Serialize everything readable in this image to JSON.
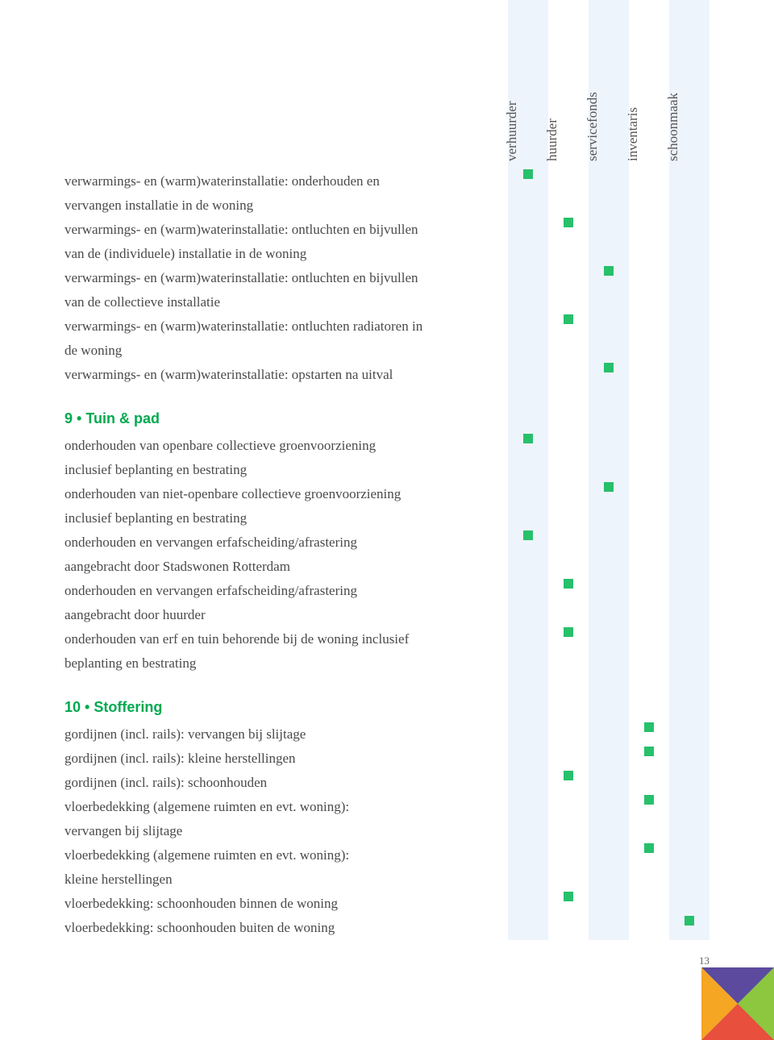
{
  "columns": [
    {
      "key": "verhuurder",
      "label": "verhuurder",
      "shade": "light"
    },
    {
      "key": "huurder",
      "label": "huurder",
      "shade": "white"
    },
    {
      "key": "servicefonds",
      "label": "servicefonds",
      "shade": "light"
    },
    {
      "key": "inventaris",
      "label": "inventaris",
      "shade": "white"
    },
    {
      "key": "schoonmaak",
      "label": "schoonmaak",
      "shade": "light"
    }
  ],
  "marker_color": "#27c06b",
  "section_color": "#00a94f",
  "stripe_light": "#eef4fc",
  "text_color": "#4a4a4a",
  "page_number": "13",
  "corner_colors": {
    "teal": "#2ab7a9",
    "green": "#8dc63f",
    "orange": "#f5a623",
    "red": "#e94f3d",
    "purple": "#5b4a9e"
  },
  "sections": [
    {
      "title": null,
      "rows": [
        {
          "lines": [
            "verwarmings- en (warm)waterinstallatie: onderhouden en",
            "vervangen installatie in de woning"
          ],
          "mark": "verhuurder"
        },
        {
          "lines": [
            "verwarmings- en (warm)waterinstallatie: ontluchten en bijvullen",
            "van de (individuele) installatie in de woning"
          ],
          "mark": "huurder"
        },
        {
          "lines": [
            "verwarmings- en (warm)waterinstallatie: ontluchten en bijvullen",
            "van de collectieve installatie"
          ],
          "mark": "servicefonds"
        },
        {
          "lines": [
            "verwarmings- en (warm)waterinstallatie: ontluchten radiatoren in",
            "de woning"
          ],
          "mark": "huurder"
        },
        {
          "lines": [
            "verwarmings- en (warm)waterinstallatie: opstarten na uitval"
          ],
          "mark": "servicefonds"
        }
      ]
    },
    {
      "title_num": "9",
      "title_text": "Tuin & pad",
      "rows": [
        {
          "lines": [
            "onderhouden van openbare collectieve groenvoorziening",
            "inclusief beplanting en bestrating"
          ],
          "mark": "verhuurder"
        },
        {
          "lines": [
            "onderhouden van niet-openbare collectieve groenvoorziening",
            "inclusief beplanting en bestrating"
          ],
          "mark": "servicefonds"
        },
        {
          "lines": [
            "onderhouden en vervangen erfafscheiding/afrastering",
            "aangebracht door Stadswonen Rotterdam"
          ],
          "mark": "verhuurder"
        },
        {
          "lines": [
            "onderhouden en vervangen erfafscheiding/afrastering",
            "aangebracht door huurder"
          ],
          "mark": "huurder"
        },
        {
          "lines": [
            "onderhouden van erf en tuin behorende bij de woning inclusief",
            "beplanting en bestrating"
          ],
          "mark": "huurder"
        }
      ]
    },
    {
      "title_num": "10",
      "title_text": "Stoffering",
      "rows": [
        {
          "lines": [
            "gordijnen (incl. rails): vervangen bij slijtage"
          ],
          "mark": "inventaris"
        },
        {
          "lines": [
            "gordijnen (incl. rails): kleine herstellingen"
          ],
          "mark": "inventaris"
        },
        {
          "lines": [
            "gordijnen (incl. rails): schoonhouden"
          ],
          "mark": "huurder"
        },
        {
          "lines": [
            "vloerbedekking (algemene ruimten en evt. woning):",
            "vervangen bij slijtage"
          ],
          "mark": "inventaris"
        },
        {
          "lines": [
            "vloerbedekking (algemene ruimten en evt. woning):",
            "kleine herstellingen"
          ],
          "mark": "inventaris"
        },
        {
          "lines": [
            "vloerbedekking: schoonhouden binnen de woning"
          ],
          "mark": "huurder"
        },
        {
          "lines": [
            "vloerbedekking: schoonhouden buiten de woning"
          ],
          "mark": "schoonmaak"
        }
      ]
    }
  ]
}
